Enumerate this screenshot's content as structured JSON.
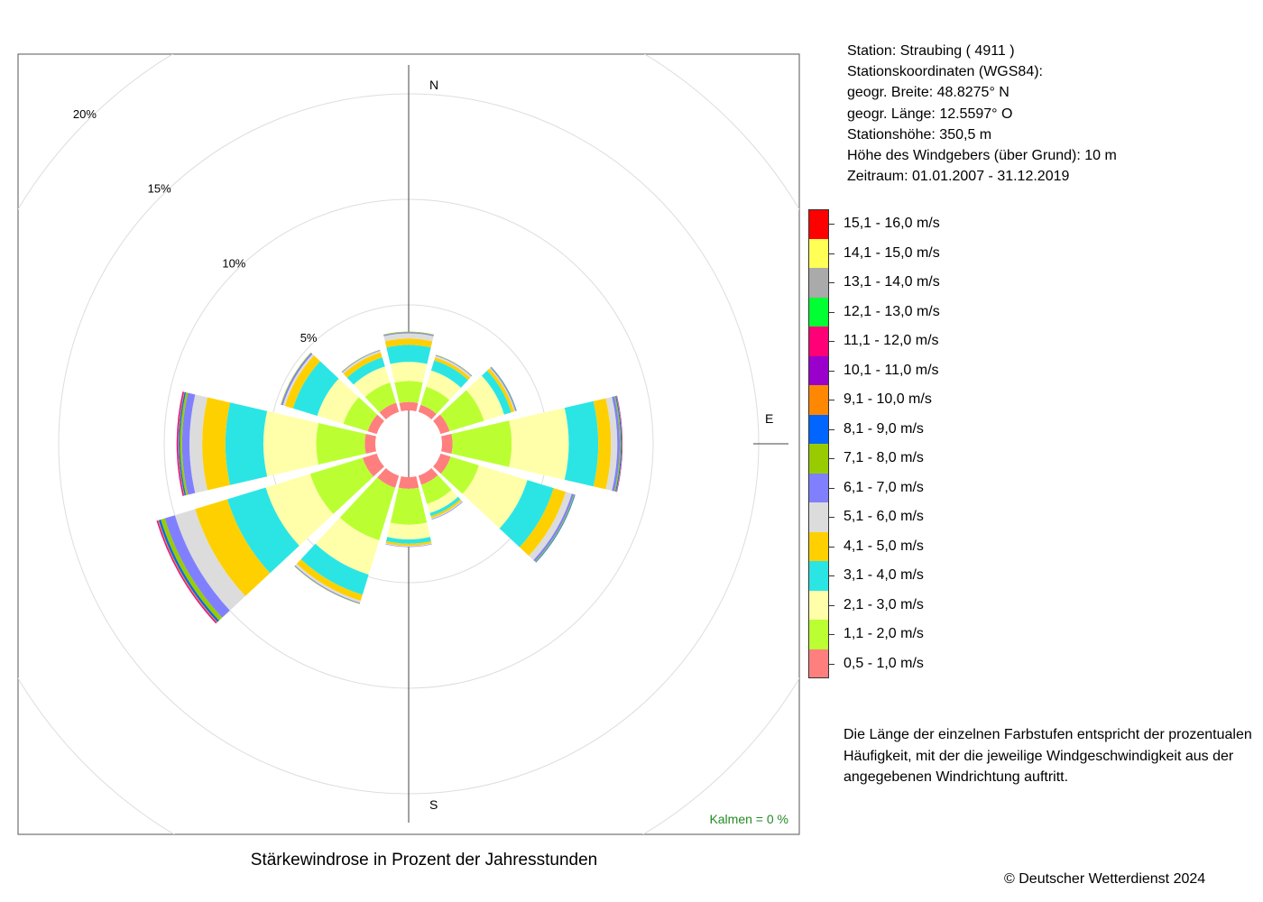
{
  "info": {
    "station": "Station:  Straubing  ( 4911 )",
    "coords_header": "Stationskoordinaten (WGS84):",
    "lat": "geogr. Breite: 48.8275° N",
    "lon": "geogr. Länge: 12.5597° O",
    "elevation": "Stationshöhe: 350,5 m",
    "sensor_height": "Höhe des Windgebers (über Grund): 10 m",
    "period": "Zeitraum: 01.01.2007 - 31.12.2019"
  },
  "note": {
    "line1": "Die Länge der einzelnen Farbstufen entspricht der prozentualen",
    "line2": "Häufigkeit, mit der die jeweilige Windgeschwindigkeit aus der",
    "line3": "angegebenen Windrichtung auftritt."
  },
  "caption": "Stärkewindrose in Prozent der Jahresstunden",
  "copyright": "© Deutscher Wetterdienst  2024",
  "calm": "Kalmen  =  0 %",
  "colors": {
    "calm_text": "#228B22",
    "grid": "#dddddd",
    "frame": "#555555"
  },
  "chart_data": {
    "type": "windrose",
    "title": "Stärkewindrose in Prozent der Jahresstunden",
    "unit": "%",
    "direction_labels": [
      "N",
      "E",
      "S"
    ],
    "ring_labels": [
      "5%",
      "10%",
      "15%",
      "20%"
    ],
    "rings": [
      5,
      10,
      15,
      20
    ],
    "ring_label_angle": 315,
    "directions_deg": [
      0,
      30,
      60,
      90,
      120,
      150,
      180,
      210,
      240,
      270,
      300,
      330
    ],
    "speed_classes": [
      {
        "label": "0,5 - 1,0 m/s",
        "color": "#FF7F7F"
      },
      {
        "label": "1,1 - 2,0 m/s",
        "color": "#BBFF33"
      },
      {
        "label": "2,1 - 3,0 m/s",
        "color": "#FFFFAA"
      },
      {
        "label": "3,1 - 4,0 m/s",
        "color": "#2BE5E5"
      },
      {
        "label": "4,1 - 5,0 m/s",
        "color": "#FFD000"
      },
      {
        "label": "5,1 - 6,0 m/s",
        "color": "#DCDCDC"
      },
      {
        "label": "6,1 - 7,0 m/s",
        "color": "#8080FF"
      },
      {
        "label": "7,1 - 8,0 m/s",
        "color": "#99CC00"
      },
      {
        "label": "8,1 - 9,0 m/s",
        "color": "#0066FF"
      },
      {
        "label": "9,1 - 10,0 m/s",
        "color": "#FF8800"
      },
      {
        "label": "10,1 - 11,0 m/s",
        "color": "#9900CC"
      },
      {
        "label": "11,1 - 12,0 m/s",
        "color": "#FF0077"
      },
      {
        "label": "12,1 - 13,0 m/s",
        "color": "#00FF33"
      },
      {
        "label": "13,1 - 14,0 m/s",
        "color": "#AAAAAA"
      },
      {
        "label": "14,1 - 15,0 m/s",
        "color": "#FFFF55"
      },
      {
        "label": "15,1 - 16,0 m/s",
        "color": "#FF0000"
      }
    ],
    "series": [
      {
        "direction": 0,
        "values": [
          0.4,
          1.0,
          0.9,
          0.8,
          0.3,
          0.25,
          0.05,
          0.03
        ]
      },
      {
        "direction": 30,
        "values": [
          0.35,
          0.9,
          0.8,
          0.5,
          0.15,
          0.08,
          0.03,
          0.02
        ]
      },
      {
        "direction": 60,
        "values": [
          0.45,
          1.7,
          1.0,
          0.35,
          0.15,
          0.05,
          0.03,
          0.02,
          0.02
        ]
      },
      {
        "direction": 90,
        "values": [
          0.5,
          2.8,
          2.7,
          1.4,
          0.6,
          0.3,
          0.12,
          0.05,
          0.04,
          0.02,
          0.02
        ]
      },
      {
        "direction": 120,
        "values": [
          0.5,
          1.4,
          2.4,
          1.3,
          0.6,
          0.3,
          0.1,
          0.04,
          0.03
        ]
      },
      {
        "direction": 150,
        "values": [
          0.45,
          0.95,
          0.45,
          0.15,
          0.1,
          0.05,
          0.03
        ]
      },
      {
        "direction": 180,
        "values": [
          0.55,
          1.7,
          0.7,
          0.2,
          0.1,
          0.04,
          0.02
        ]
      },
      {
        "direction": 210,
        "values": [
          0.6,
          2.6,
          1.7,
          1.0,
          0.3,
          0.1,
          0.04,
          0.02
        ]
      },
      {
        "direction": 240,
        "values": [
          0.7,
          2.6,
          2.2,
          1.9,
          1.6,
          1.0,
          0.5,
          0.2,
          0.1,
          0.05,
          0.03,
          0.03
        ]
      },
      {
        "direction": 270,
        "values": [
          0.5,
          2.3,
          2.5,
          1.8,
          1.1,
          0.6,
          0.35,
          0.1,
          0.06,
          0.04,
          0.03,
          0.03
        ]
      },
      {
        "direction": 300,
        "values": [
          0.45,
          1.2,
          1.3,
          1.2,
          0.4,
          0.1,
          0.08,
          0.03
        ]
      },
      {
        "direction": 330,
        "values": [
          0.45,
          1.0,
          0.8,
          0.45,
          0.25,
          0.08,
          0.03,
          0.02
        ]
      }
    ],
    "calm_percent": 0,
    "legend_placement": "right",
    "grid": true
  }
}
